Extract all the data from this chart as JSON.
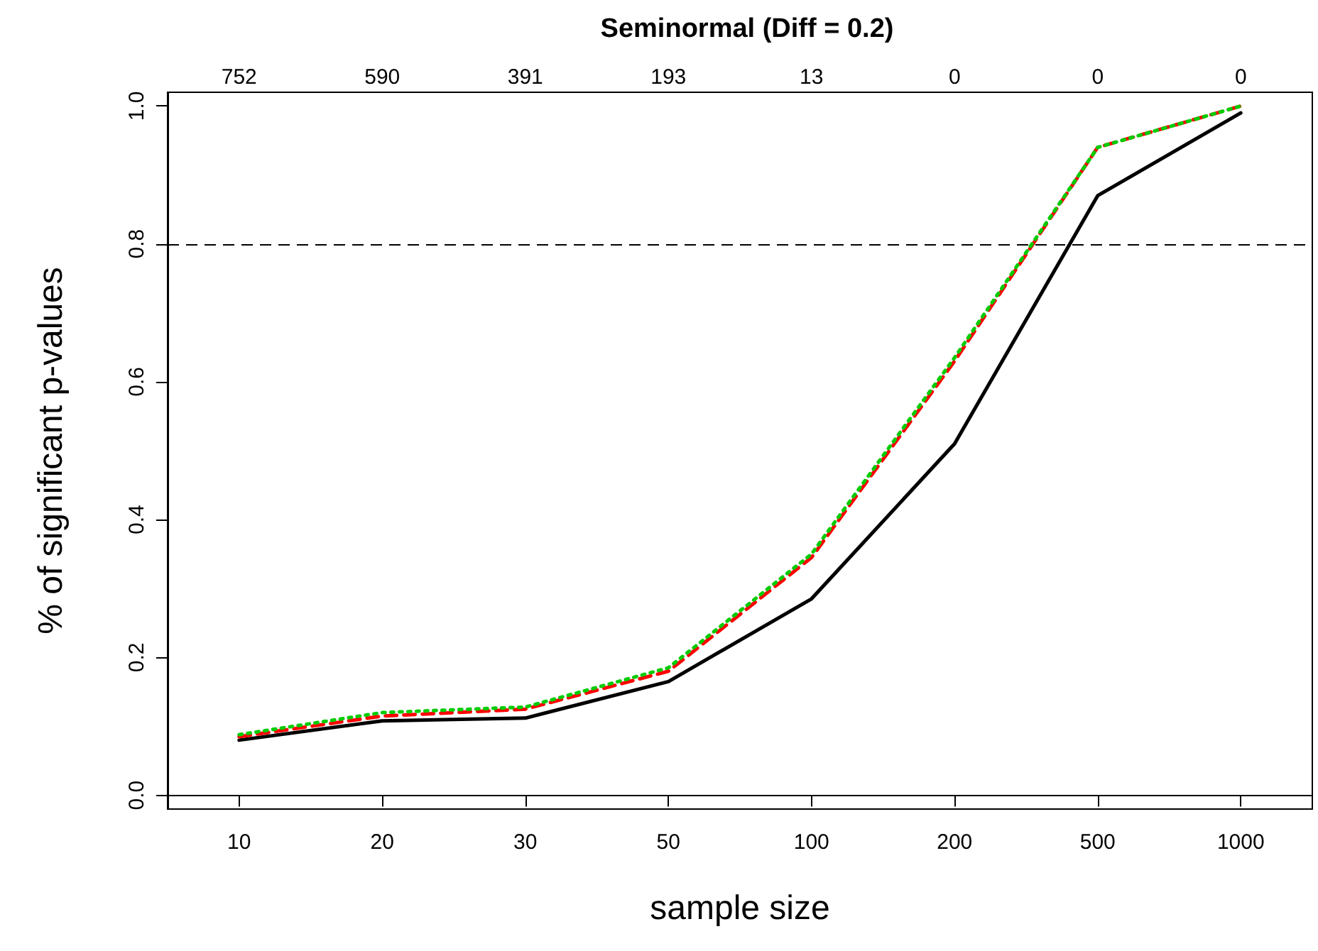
{
  "chart_data": {
    "type": "line",
    "title": "Seminormal (Diff = 0.2)",
    "xlabel": "sample size",
    "ylabel": "% of significant p-values",
    "categories": [
      "10",
      "20",
      "30",
      "50",
      "100",
      "200",
      "500",
      "1000"
    ],
    "series": [
      {
        "color": "#000000",
        "line_style": "solid",
        "values": [
          0.08,
          0.108,
          0.112,
          0.165,
          0.285,
          0.51,
          0.87,
          0.99
        ]
      },
      {
        "color": "#ff0000",
        "line_style": "dashed",
        "values": [
          0.085,
          0.115,
          0.125,
          0.18,
          0.345,
          0.63,
          0.94,
          1.0
        ]
      },
      {
        "color": "#00cc00",
        "line_style": "dotted",
        "values": [
          0.088,
          0.12,
          0.128,
          0.185,
          0.35,
          0.635,
          0.94,
          1.0
        ]
      }
    ],
    "annotations": [
      "752",
      "590",
      "391",
      "193",
      "13",
      "0",
      "0",
      "0"
    ],
    "ylim": [
      -0.02,
      1.02
    ],
    "yticks": [
      {
        "value": 0,
        "label": "0.0"
      },
      0.2,
      0.4,
      0.6,
      0.8,
      {
        "value": 1,
        "label": "1.0"
      }
    ],
    "ref_lines": [
      {
        "axis": "y",
        "value": 0.8,
        "line_style": "dashed",
        "color": "#000000"
      }
    ],
    "grid": false,
    "marker": "none"
  }
}
